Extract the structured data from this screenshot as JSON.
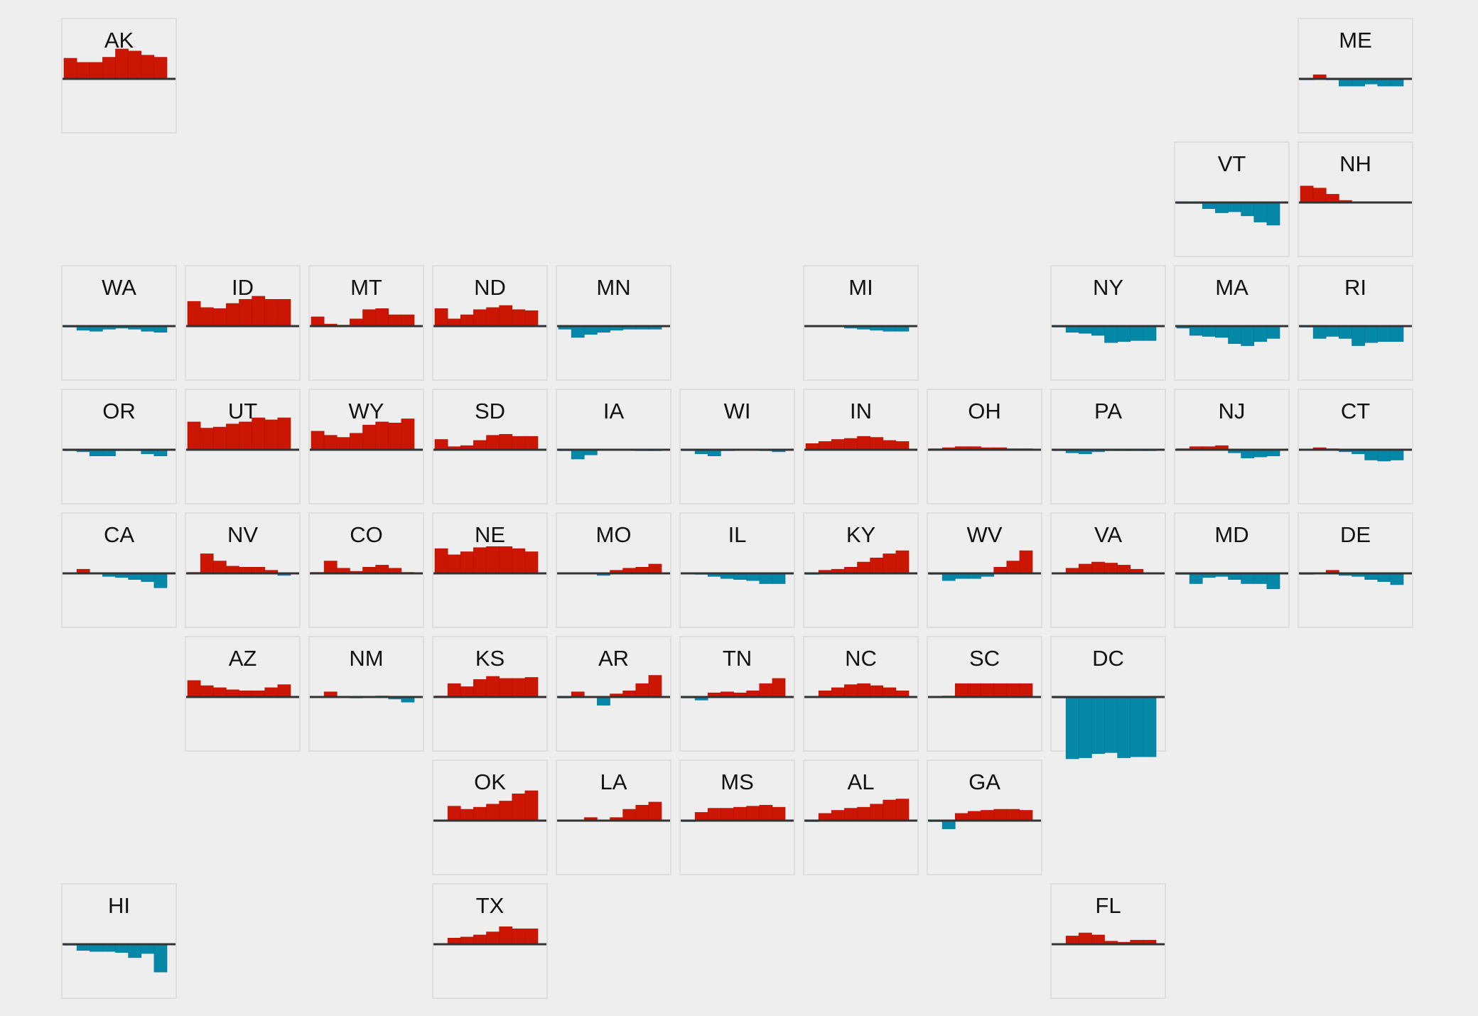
{
  "colors": {
    "positive": "#cc1604",
    "negative": "#0588a8",
    "baseline": "#333333",
    "tile_border": "#dedede",
    "background": "#eeeeee"
  },
  "chart_data": {
    "type": "bar",
    "layout": "tile-grid small multiples (US state map)",
    "title": "",
    "xlabel": "",
    "ylabel": "",
    "ylim": [
      -6,
      3.2
    ],
    "grid": false,
    "legend": "none",
    "bars_per_state": 8,
    "states": [
      {
        "name": "AK",
        "row": 0,
        "col": 0,
        "values": [
          2.0,
          1.6,
          1.6,
          2.1,
          2.9,
          2.7,
          2.3,
          2.1
        ]
      },
      {
        "name": "ME",
        "row": 0,
        "col": 10,
        "values": [
          -0.1,
          0.4,
          -0.1,
          -0.7,
          -0.7,
          -0.5,
          -0.7,
          -0.7
        ]
      },
      {
        "name": "VT",
        "row": 1,
        "col": 9,
        "values": [
          -0.1,
          -0.1,
          -0.6,
          -1.0,
          -0.9,
          -1.3,
          -1.9,
          -2.2
        ]
      },
      {
        "name": "NH",
        "row": 1,
        "col": 10,
        "values": [
          1.6,
          1.4,
          0.8,
          0.2,
          0.05,
          -0.05,
          -0.05,
          -0.05
        ]
      },
      {
        "name": "WA",
        "row": 2,
        "col": 0,
        "values": [
          -0.1,
          -0.4,
          -0.5,
          -0.3,
          -0.2,
          -0.3,
          -0.5,
          -0.6
        ]
      },
      {
        "name": "ID",
        "row": 2,
        "col": 1,
        "values": [
          2.4,
          1.8,
          1.7,
          2.2,
          2.6,
          2.9,
          2.6,
          2.6
        ]
      },
      {
        "name": "MT",
        "row": 2,
        "col": 2,
        "values": [
          0.9,
          0.2,
          0.1,
          0.7,
          1.6,
          1.7,
          1.1,
          1.1
        ]
      },
      {
        "name": "ND",
        "row": 2,
        "col": 3,
        "values": [
          1.7,
          0.7,
          1.1,
          1.6,
          1.8,
          2.0,
          1.6,
          1.5
        ]
      },
      {
        "name": "MN",
        "row": 2,
        "col": 4,
        "values": [
          -0.3,
          -1.1,
          -0.8,
          -0.6,
          -0.4,
          -0.3,
          -0.3,
          -0.3
        ]
      },
      {
        "name": "MI",
        "row": 2,
        "col": 6,
        "values": [
          0.05,
          -0.05,
          -0.05,
          -0.2,
          -0.3,
          -0.4,
          -0.5,
          -0.5
        ]
      },
      {
        "name": "NY",
        "row": 2,
        "col": 8,
        "values": [
          -0.1,
          -0.6,
          -0.7,
          -0.9,
          -1.6,
          -1.5,
          -1.4,
          -1.4
        ]
      },
      {
        "name": "MA",
        "row": 2,
        "col": 9,
        "values": [
          -0.2,
          -0.9,
          -1.0,
          -1.1,
          -1.7,
          -1.9,
          -1.5,
          -1.2
        ]
      },
      {
        "name": "RI",
        "row": 2,
        "col": 10,
        "values": [
          -0.1,
          -1.2,
          -1.0,
          -1.2,
          -1.9,
          -1.6,
          -1.5,
          -1.5
        ]
      },
      {
        "name": "OR",
        "row": 3,
        "col": 0,
        "values": [
          -0.1,
          -0.2,
          -0.6,
          -0.6,
          -0.1,
          -0.1,
          -0.4,
          -0.6
        ]
      },
      {
        "name": "UT",
        "row": 3,
        "col": 1,
        "values": [
          2.7,
          2.1,
          2.2,
          2.5,
          2.7,
          3.1,
          2.9,
          3.1
        ]
      },
      {
        "name": "WY",
        "row": 3,
        "col": 2,
        "values": [
          1.8,
          1.4,
          1.2,
          1.6,
          2.4,
          2.7,
          2.6,
          3.0
        ]
      },
      {
        "name": "SD",
        "row": 3,
        "col": 3,
        "values": [
          1.0,
          0.3,
          0.4,
          0.9,
          1.4,
          1.5,
          1.3,
          1.3
        ]
      },
      {
        "name": "IA",
        "row": 3,
        "col": 4,
        "values": [
          -0.1,
          -0.9,
          -0.5,
          -0.05,
          -0.05,
          -0.05,
          -0.1,
          -0.1
        ]
      },
      {
        "name": "WI",
        "row": 3,
        "col": 5,
        "values": [
          -0.1,
          -0.4,
          -0.6,
          -0.1,
          -0.05,
          -0.05,
          -0.1,
          -0.2
        ]
      },
      {
        "name": "IN",
        "row": 3,
        "col": 6,
        "values": [
          0.6,
          0.8,
          1.0,
          1.1,
          1.3,
          1.2,
          0.9,
          0.8
        ]
      },
      {
        "name": "OH",
        "row": 3,
        "col": 7,
        "values": [
          0.1,
          0.2,
          0.3,
          0.3,
          0.2,
          0.2,
          0.1,
          0.1
        ]
      },
      {
        "name": "PA",
        "row": 3,
        "col": 8,
        "values": [
          -0.1,
          -0.3,
          -0.4,
          -0.2,
          -0.1,
          -0.1,
          -0.1,
          -0.1
        ]
      },
      {
        "name": "NJ",
        "row": 3,
        "col": 9,
        "values": [
          0.1,
          0.3,
          0.3,
          0.4,
          -0.3,
          -0.8,
          -0.7,
          -0.6
        ]
      },
      {
        "name": "CT",
        "row": 3,
        "col": 10,
        "values": [
          0.05,
          0.2,
          0.1,
          -0.2,
          -0.4,
          -1.0,
          -1.1,
          -1.0
        ]
      },
      {
        "name": "CA",
        "row": 4,
        "col": 0,
        "values": [
          0.05,
          0.4,
          -0.05,
          -0.3,
          -0.4,
          -0.6,
          -0.8,
          -1.4
        ]
      },
      {
        "name": "NV",
        "row": 4,
        "col": 1,
        "values": [
          0.1,
          1.9,
          1.2,
          0.7,
          0.6,
          0.6,
          0.3,
          -0.2
        ]
      },
      {
        "name": "CO",
        "row": 4,
        "col": 2,
        "values": [
          0.1,
          1.2,
          0.5,
          0.2,
          0.6,
          0.8,
          0.5,
          0.1
        ]
      },
      {
        "name": "NE",
        "row": 4,
        "col": 3,
        "values": [
          2.4,
          1.8,
          2.1,
          2.5,
          2.6,
          2.6,
          2.4,
          2.1
        ]
      },
      {
        "name": "MO",
        "row": 4,
        "col": 4,
        "values": [
          0.05,
          0.05,
          0.05,
          -0.2,
          0.3,
          0.5,
          0.6,
          0.9
        ]
      },
      {
        "name": "IL",
        "row": 4,
        "col": 5,
        "values": [
          0.05,
          -0.1,
          -0.3,
          -0.5,
          -0.6,
          -0.7,
          -1.0,
          -1.0
        ]
      },
      {
        "name": "KY",
        "row": 4,
        "col": 6,
        "values": [
          -0.1,
          0.3,
          0.4,
          0.6,
          1.1,
          1.5,
          1.9,
          2.2
        ]
      },
      {
        "name": "WV",
        "row": 4,
        "col": 7,
        "values": [
          -0.1,
          -0.7,
          -0.5,
          -0.5,
          -0.3,
          0.6,
          1.2,
          2.2
        ]
      },
      {
        "name": "VA",
        "row": 4,
        "col": 8,
        "values": [
          0.05,
          0.5,
          0.9,
          1.1,
          1.0,
          0.8,
          0.4,
          0.05
        ]
      },
      {
        "name": "MD",
        "row": 4,
        "col": 9,
        "values": [
          -0.1,
          -1.0,
          -0.4,
          -0.3,
          -0.6,
          -1.0,
          -1.0,
          -1.5
        ]
      },
      {
        "name": "DE",
        "row": 4,
        "col": 10,
        "values": [
          -0.1,
          0.05,
          0.3,
          -0.2,
          -0.3,
          -0.6,
          -0.8,
          -1.1
        ]
      },
      {
        "name": "AZ",
        "row": 5,
        "col": 1,
        "values": [
          1.6,
          1.1,
          0.9,
          0.7,
          0.6,
          0.6,
          0.9,
          1.2
        ]
      },
      {
        "name": "NM",
        "row": 5,
        "col": 2,
        "values": [
          0.05,
          0.5,
          0.05,
          -0.1,
          0.05,
          0.1,
          -0.2,
          -0.5
        ]
      },
      {
        "name": "KS",
        "row": 5,
        "col": 3,
        "values": [
          0.1,
          1.3,
          1.0,
          1.7,
          2.0,
          1.8,
          1.8,
          1.9
        ]
      },
      {
        "name": "AR",
        "row": 5,
        "col": 4,
        "values": [
          -0.1,
          0.5,
          -0.05,
          -0.8,
          0.3,
          0.6,
          1.3,
          2.1
        ]
      },
      {
        "name": "TN",
        "row": 5,
        "col": 5,
        "values": [
          -0.1,
          -0.3,
          0.4,
          0.5,
          0.4,
          0.6,
          1.3,
          1.8
        ]
      },
      {
        "name": "NC",
        "row": 5,
        "col": 6,
        "values": [
          0.05,
          0.6,
          0.9,
          1.2,
          1.3,
          1.1,
          0.9,
          0.6
        ]
      },
      {
        "name": "SC",
        "row": 5,
        "col": 7,
        "values": [
          0.05,
          0.1,
          1.3,
          1.3,
          1.3,
          1.3,
          1.3,
          1.3
        ]
      },
      {
        "name": "DC",
        "row": 5,
        "col": 8,
        "values": [
          -0.1,
          -6.0,
          -5.9,
          -5.5,
          -5.4,
          -5.9,
          -5.8,
          -5.8
        ]
      },
      {
        "name": "OK",
        "row": 6,
        "col": 3,
        "values": [
          0.05,
          1.4,
          1.1,
          1.3,
          1.6,
          1.9,
          2.6,
          2.9
        ]
      },
      {
        "name": "LA",
        "row": 6,
        "col": 4,
        "values": [
          0.05,
          0.05,
          0.3,
          0.05,
          0.3,
          1.1,
          1.5,
          1.8
        ]
      },
      {
        "name": "MS",
        "row": 6,
        "col": 5,
        "values": [
          -0.1,
          0.8,
          1.2,
          1.2,
          1.3,
          1.4,
          1.5,
          1.3
        ]
      },
      {
        "name": "AL",
        "row": 6,
        "col": 6,
        "values": [
          -0.1,
          0.7,
          1.0,
          1.2,
          1.3,
          1.6,
          2.0,
          2.1
        ]
      },
      {
        "name": "GA",
        "row": 6,
        "col": 7,
        "values": [
          -0.1,
          -0.8,
          0.7,
          0.9,
          1.0,
          1.1,
          1.1,
          1.0
        ]
      },
      {
        "name": "HI",
        "row": 7,
        "col": 0,
        "values": [
          -0.1,
          -0.6,
          -0.7,
          -0.7,
          -0.8,
          -1.3,
          -0.9,
          -2.7
        ]
      },
      {
        "name": "TX",
        "row": 7,
        "col": 3,
        "values": [
          0.05,
          0.6,
          0.7,
          0.9,
          1.2,
          1.7,
          1.5,
          1.5
        ]
      },
      {
        "name": "FL",
        "row": 7,
        "col": 8,
        "values": [
          0.05,
          0.8,
          1.1,
          0.9,
          0.3,
          0.2,
          0.4,
          0.4
        ]
      }
    ]
  }
}
